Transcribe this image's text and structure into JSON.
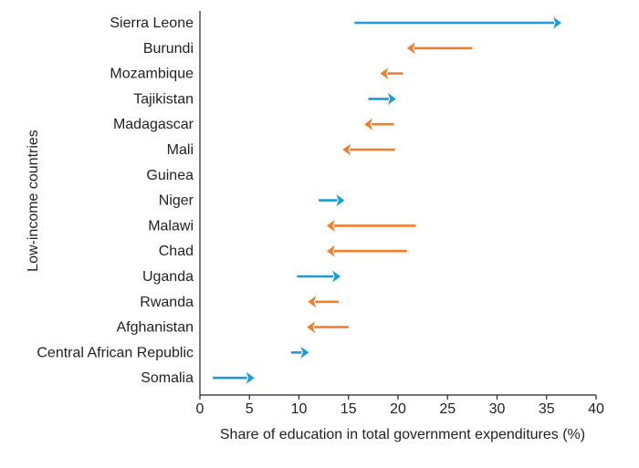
{
  "chart_data": {
    "type": "arrow",
    "title": "",
    "xlabel": "Share of education in total government expenditures (%)",
    "ylabel": "Low-income countries",
    "xlim": [
      0,
      40
    ],
    "xticks": [
      0,
      5,
      10,
      15,
      20,
      25,
      30,
      35,
      40
    ],
    "grid": false,
    "legend": "none",
    "colors": {
      "increase": "#1a9ad7",
      "decrease": "#f07e2e",
      "axis": "#222222"
    },
    "series": [
      {
        "country": "Sierra Leone",
        "from": 15.6,
        "to": 36.5,
        "direction": "increase"
      },
      {
        "country": "Burundi",
        "from": 27.5,
        "to": 20.9,
        "direction": "decrease"
      },
      {
        "country": "Mozambique",
        "from": 20.5,
        "to": 18.2,
        "direction": "decrease"
      },
      {
        "country": "Tajikistan",
        "from": 17.0,
        "to": 19.8,
        "direction": "increase"
      },
      {
        "country": "Madagascar",
        "from": 19.6,
        "to": 16.6,
        "direction": "decrease"
      },
      {
        "country": "Mali",
        "from": 19.7,
        "to": 14.4,
        "direction": "decrease"
      },
      {
        "country": "Guinea",
        "from": null,
        "to": null,
        "direction": "none"
      },
      {
        "country": "Niger",
        "from": 12.0,
        "to": 14.6,
        "direction": "increase"
      },
      {
        "country": "Malawi",
        "from": 21.8,
        "to": 12.8,
        "direction": "decrease"
      },
      {
        "country": "Chad",
        "from": 20.9,
        "to": 12.8,
        "direction": "decrease"
      },
      {
        "country": "Uganda",
        "from": 9.8,
        "to": 14.2,
        "direction": "increase"
      },
      {
        "country": "Rwanda",
        "from": 14.0,
        "to": 10.9,
        "direction": "decrease"
      },
      {
        "country": "Afghanistan",
        "from": 15.0,
        "to": 10.8,
        "direction": "decrease"
      },
      {
        "country": "Central African Republic",
        "from": 9.2,
        "to": 11.0,
        "direction": "increase"
      },
      {
        "country": "Somalia",
        "from": 1.3,
        "to": 5.5,
        "direction": "increase"
      }
    ]
  }
}
